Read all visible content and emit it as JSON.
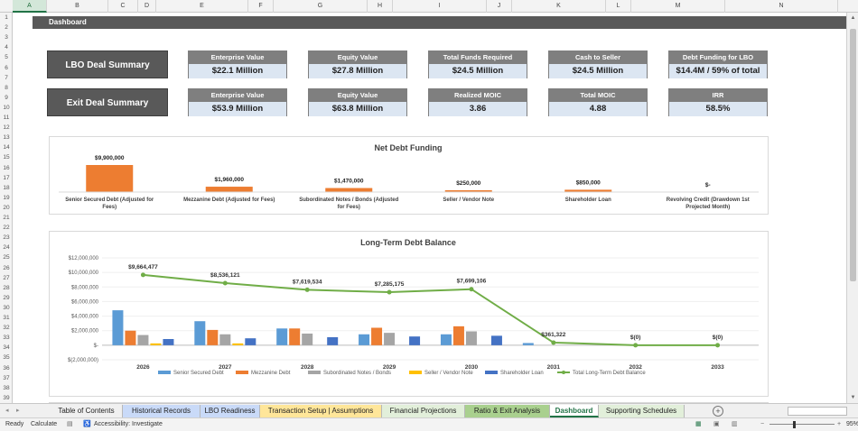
{
  "columns": [
    "A",
    "B",
    "C",
    "D",
    "E",
    "F",
    "G",
    "H",
    "I",
    "J",
    "K",
    "L",
    "M",
    "N"
  ],
  "selected_column": "A",
  "rows": [
    "1",
    "2",
    "3",
    "4",
    "5",
    "6",
    "7",
    "8",
    "9",
    "10",
    "11",
    "12",
    "13",
    "14",
    "15",
    "16",
    "17",
    "18",
    "19",
    "20",
    "21",
    "22",
    "23",
    "24",
    "25",
    "26",
    "27",
    "28",
    "29",
    "30",
    "31",
    "32",
    "33",
    "34",
    "35",
    "36",
    "37",
    "38",
    "39"
  ],
  "banner": "Dashboard",
  "lbo_button": "LBO Deal Summary",
  "exit_button": "Exit Deal Summary",
  "lbo_kpis": [
    {
      "label": "Enterprise Value",
      "value": "$22.1 Million"
    },
    {
      "label": "Equity Value",
      "value": "$27.8 Million"
    },
    {
      "label": "Total Funds Required",
      "value": "$24.5 Million"
    },
    {
      "label": "Cash to Seller",
      "value": "$24.5 Million"
    },
    {
      "label": "Debt Funding for LBO",
      "value": "$14.4M / 59% of total"
    }
  ],
  "exit_kpis": [
    {
      "label": "Enterprise Value",
      "value": "$53.9 Million"
    },
    {
      "label": "Equity Value",
      "value": "$63.8 Million"
    },
    {
      "label": "Realized MOIC",
      "value": "3.86"
    },
    {
      "label": "Total MOIC",
      "value": "4.88"
    },
    {
      "label": "IRR",
      "value": "58.5%"
    }
  ],
  "chart_data": [
    {
      "type": "bar",
      "title": "Net Debt Funding",
      "categories": [
        "Senior Secured Debt (Adjusted for Fees)",
        "Mezzanine Debt (Adjusted for Fees)",
        "Subordinated Notes / Bonds (Adjusted for Fees)",
        "Seller / Vendor Note",
        "Shareholder Loan",
        "Revolving Credit (Drawdown 1st Projected Month)"
      ],
      "values": [
        9900000,
        1960000,
        1470000,
        250000,
        850000,
        0
      ],
      "data_labels": [
        "$9,900,000",
        "$1,960,000",
        "$1,470,000",
        "$250,000",
        "$850,000",
        "$-"
      ],
      "color": "#ed7d31",
      "ylim": [
        0,
        9900000
      ]
    },
    {
      "type": "bar",
      "title": "Long-Term Debt Balance",
      "categories": [
        "2026",
        "2027",
        "2028",
        "2029",
        "2030",
        "2031",
        "2032",
        "2033"
      ],
      "ylim": [
        -2000000,
        12000000
      ],
      "yticks": [
        -2000000,
        0,
        2000000,
        4000000,
        6000000,
        8000000,
        10000000,
        12000000
      ],
      "ytick_labels": [
        "$(2,000,000)",
        "$-",
        "$2,000,000",
        "$4,000,000",
        "$6,000,000",
        "$8,000,000",
        "$10,000,000",
        "$12,000,000"
      ],
      "series": [
        {
          "name": "Senior Secured Debt",
          "color": "#5b9bd5",
          "values": [
            4800000,
            3300000,
            2300000,
            1500000,
            1500000,
            300000,
            0,
            0
          ]
        },
        {
          "name": "Mezzanine Debt",
          "color": "#ed7d31",
          "values": [
            2000000,
            2100000,
            2300000,
            2400000,
            2600000,
            0,
            0,
            0
          ]
        },
        {
          "name": "Subordinated Notes / Bonds",
          "color": "#a5a5a5",
          "values": [
            1400000,
            1500000,
            1600000,
            1700000,
            1900000,
            0,
            0,
            0
          ]
        },
        {
          "name": "Seller / Vendor Note",
          "color": "#ffc000",
          "values": [
            250000,
            250000,
            0,
            0,
            0,
            0,
            0,
            0
          ]
        },
        {
          "name": "Shareholder Loan",
          "color": "#4472c4",
          "values": [
            850000,
            950000,
            1100000,
            1200000,
            1300000,
            0,
            0,
            0
          ]
        }
      ],
      "line_series": {
        "name": "Total Long-Term Debt Balance",
        "color": "#70ad47",
        "values": [
          9664477,
          8536121,
          7619534,
          7285175,
          7699106,
          361322,
          0,
          0
        ],
        "data_labels": [
          "$9,664,477",
          "$8,536,121",
          "$7,619,534",
          "$7,285,175",
          "$7,699,106",
          "$361,322",
          "$(0)",
          "$(0)"
        ]
      },
      "legend": "bottom"
    }
  ],
  "tabs": [
    {
      "label": "Table of Contents",
      "color": "#f0f0f0"
    },
    {
      "label": "Historical Records",
      "color": "#c9daf8"
    },
    {
      "label": "LBO Readiness",
      "color": "#c9daf8"
    },
    {
      "label": "Transaction Setup | Assumptions",
      "color": "#ffe699"
    },
    {
      "label": "Financial Projections",
      "color": "#e2efda"
    },
    {
      "label": "Ratio & Exit Analysis",
      "color": "#a9d08e"
    },
    {
      "label": "Dashboard",
      "color": "#ffffff"
    },
    {
      "label": "Supporting Schedules",
      "color": "#e2efda"
    }
  ],
  "active_tab": "Dashboard",
  "status": {
    "ready": "Ready",
    "calculate": "Calculate",
    "accessibility": "Accessibility: Investigate",
    "zoom": "95%"
  }
}
